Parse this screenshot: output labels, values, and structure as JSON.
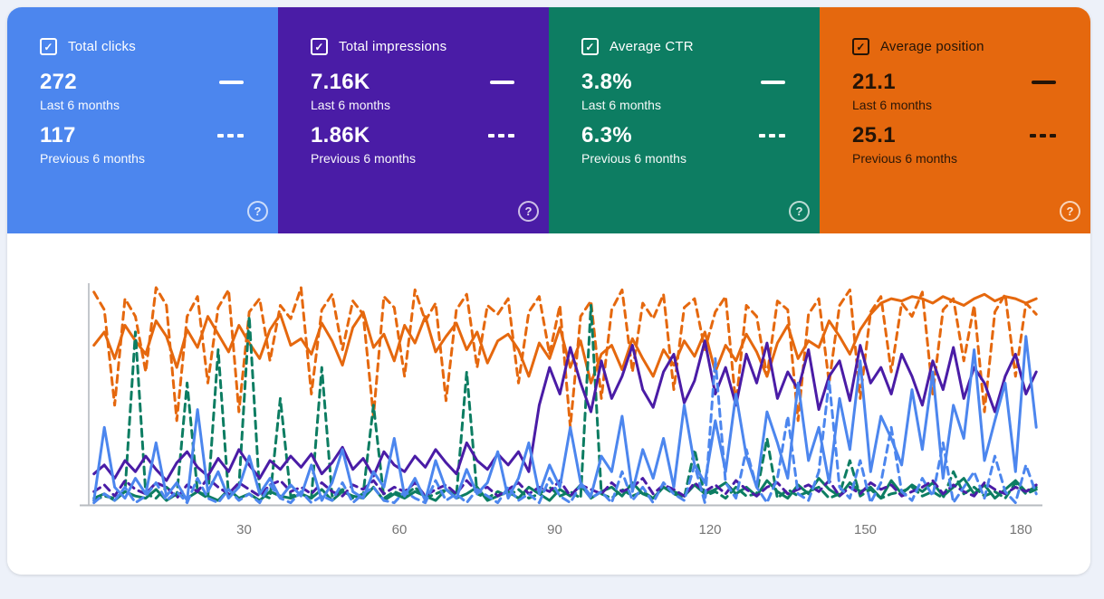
{
  "cards": [
    {
      "label": "Total clicks",
      "value_last": "272",
      "value_prev": "117",
      "bg": "#4c86ee",
      "text": "#ffffff",
      "checked": true
    },
    {
      "label": "Total impressions",
      "value_last": "7.16K",
      "value_prev": "1.86K",
      "bg": "#4a1ca6",
      "text": "#ffffff",
      "checked": true
    },
    {
      "label": "Average CTR",
      "value_last": "3.8%",
      "value_prev": "6.3%",
      "bg": "#0d7d62",
      "text": "#ffffff",
      "checked": true
    },
    {
      "label": "Average position",
      "value_last": "21.1",
      "value_prev": "25.1",
      "bg": "#e5680e",
      "text": "#241407",
      "checked": true
    }
  ],
  "period_labels": {
    "last": "Last 6 months",
    "prev": "Previous 6 months"
  },
  "icons": {
    "help": "?",
    "check": "✓"
  },
  "colors": {
    "clicks": "#4c86ee",
    "impressions": "#4a1ca6",
    "ctr": "#0d7d62",
    "position": "#e5680e",
    "axis": "#c4c7cc",
    "tick_text": "#757575"
  },
  "chart_data": {
    "type": "line",
    "title": "",
    "xlabel": "",
    "ylabel": "",
    "x_ticks": [
      30,
      60,
      90,
      120,
      150,
      180
    ],
    "x_range": [
      1,
      183
    ],
    "x_step_days": 2,
    "ylim": [
      0,
      100
    ],
    "grid": false,
    "legend_position": "in-cards",
    "series": [
      {
        "name": "Average position — Previous 6 months",
        "metric": "position",
        "period": "previous",
        "color": "#e5680e",
        "dash": true,
        "values": [
          96,
          88,
          45,
          93,
          85,
          60,
          98,
          90,
          38,
          85,
          94,
          55,
          89,
          97,
          42,
          87,
          93,
          65,
          90,
          84,
          98,
          50,
          88,
          95,
          70,
          92,
          86,
          40,
          94,
          89,
          58,
          97,
          83,
          91,
          47,
          88,
          95,
          62,
          90,
          86,
          93,
          55,
          87,
          94,
          68,
          90,
          35,
          85,
          92,
          48,
          88,
          97,
          60,
          91,
          84,
          95,
          52,
          89,
          93,
          70,
          87,
          94,
          45,
          90,
          85,
          58,
          92,
          88,
          38,
          86,
          93,
          55,
          90,
          97,
          48,
          87,
          94,
          60,
          91,
          85,
          96,
          50,
          88,
          93,
          65,
          90,
          42,
          87,
          95,
          58,
          91,
          86
        ]
      },
      {
        "name": "Average position — Last 6 months",
        "metric": "position",
        "period": "last",
        "color": "#e5680e",
        "dash": false,
        "values": [
          72,
          78,
          66,
          81,
          74,
          68,
          83,
          76,
          62,
          79,
          71,
          85,
          77,
          69,
          81,
          73,
          66,
          79,
          86,
          72,
          75,
          68,
          82,
          74,
          63,
          80,
          87,
          71,
          77,
          65,
          81,
          73,
          85,
          69,
          76,
          82,
          70,
          78,
          64,
          74,
          77,
          70,
          58,
          73,
          66,
          80,
          62,
          74,
          55,
          68,
          72,
          61,
          75,
          66,
          58,
          70,
          63,
          74,
          67,
          78,
          60,
          72,
          65,
          77,
          69,
          58,
          73,
          81,
          66,
          74,
          71,
          83,
          76,
          68,
          79,
          86,
          91,
          93,
          92,
          94,
          93,
          91,
          94,
          92,
          90,
          93,
          95,
          92,
          94,
          93,
          91,
          93
        ]
      },
      {
        "name": "Average CTR — Previous 6 months",
        "metric": "ctr",
        "period": "previous",
        "color": "#0d7d62",
        "dash": true,
        "values": [
          2,
          4,
          3,
          6,
          78,
          5,
          3,
          8,
          4,
          55,
          6,
          3,
          70,
          4,
          8,
          85,
          5,
          3,
          48,
          4,
          5,
          3,
          62,
          4,
          7,
          3,
          5,
          45,
          3,
          6,
          4,
          8,
          3,
          5,
          7,
          4,
          60,
          5,
          3,
          6,
          4,
          7,
          3,
          5,
          8,
          4,
          6,
          3,
          90,
          5,
          3,
          7,
          4,
          6,
          3,
          8,
          5,
          3,
          25,
          4,
          6,
          3,
          8,
          4,
          5,
          30,
          3,
          7,
          4,
          6,
          8,
          3,
          5,
          20,
          4,
          7,
          3,
          5,
          6,
          8,
          4,
          6,
          3,
          15,
          5,
          8,
          4,
          6,
          3,
          10,
          5,
          7
        ]
      },
      {
        "name": "Average CTR — Last 6 months",
        "metric": "ctr",
        "period": "last",
        "color": "#0d7d62",
        "dash": false,
        "values": [
          3,
          5,
          2,
          6,
          4,
          3,
          7,
          2,
          5,
          3,
          6,
          4,
          2,
          7,
          3,
          5,
          2,
          6,
          4,
          3,
          5,
          3,
          7,
          2,
          6,
          4,
          3,
          8,
          2,
          5,
          3,
          6,
          4,
          2,
          7,
          3,
          5,
          8,
          2,
          4,
          6,
          3,
          8,
          5,
          2,
          7,
          4,
          9,
          3,
          6,
          8,
          4,
          10,
          5,
          3,
          8,
          6,
          4,
          9,
          5,
          7,
          10,
          5,
          8,
          4,
          11,
          6,
          3,
          9,
          5,
          12,
          7,
          4,
          10,
          6,
          8,
          3,
          11,
          5,
          9,
          6,
          10,
          4,
          8,
          12,
          5,
          9,
          3,
          7,
          11,
          6,
          8
        ]
      },
      {
        "name": "Total impressions — Previous 6 months",
        "metric": "impressions",
        "period": "previous",
        "color": "#4a1ca6",
        "dash": true,
        "values": [
          6,
          9,
          4,
          11,
          7,
          5,
          10,
          8,
          3,
          9,
          6,
          12,
          8,
          5,
          10,
          7,
          4,
          9,
          11,
          6,
          8,
          5,
          10,
          6,
          4,
          9,
          7,
          11,
          5,
          8,
          6,
          10,
          4,
          7,
          9,
          5,
          11,
          6,
          8,
          4,
          7,
          10,
          5,
          8,
          6,
          11,
          4,
          9,
          7,
          5,
          10,
          6,
          8,
          12,
          5,
          9,
          7,
          4,
          10,
          6,
          9,
          5,
          11,
          7,
          4,
          8,
          10,
          5,
          7,
          9,
          6,
          11,
          4,
          8,
          5,
          10,
          7,
          9,
          4,
          6,
          8,
          11,
          5,
          9,
          6,
          4,
          10,
          7,
          5,
          8,
          6,
          9
        ]
      },
      {
        "name": "Total impressions — Last 6 months",
        "metric": "impressions",
        "period": "last",
        "color": "#4a1ca6",
        "dash": false,
        "values": [
          14,
          18,
          12,
          20,
          15,
          22,
          16,
          11,
          19,
          24,
          17,
          13,
          21,
          15,
          25,
          18,
          12,
          20,
          16,
          22,
          17,
          23,
          14,
          19,
          26,
          16,
          21,
          13,
          24,
          18,
          15,
          22,
          17,
          25,
          19,
          14,
          28,
          20,
          16,
          23,
          18,
          24,
          15,
          45,
          62,
          50,
          71,
          55,
          42,
          65,
          48,
          58,
          72,
          52,
          44,
          60,
          68,
          46,
          56,
          74,
          50,
          62,
          45,
          68,
          55,
          73,
          48,
          60,
          52,
          70,
          43,
          58,
          65,
          47,
          72,
          55,
          62,
          50,
          68,
          58,
          45,
          65,
          52,
          71,
          48,
          62,
          55,
          42,
          58,
          68,
          50,
          60
        ]
      },
      {
        "name": "Total clicks — Previous 6 months",
        "metric": "clicks",
        "period": "previous",
        "color": "#4c86ee",
        "dash": true,
        "values": [
          1,
          5,
          2,
          8,
          1,
          4,
          10,
          2,
          6,
          1,
          12,
          3,
          1,
          7,
          2,
          5,
          1,
          9,
          3,
          1,
          6,
          1,
          4,
          2,
          10,
          1,
          5,
          8,
          2,
          1,
          6,
          3,
          1,
          11,
          2,
          5,
          1,
          7,
          4,
          1,
          8,
          2,
          5,
          1,
          12,
          4,
          1,
          9,
          3,
          6,
          1,
          15,
          2,
          8,
          1,
          10,
          5,
          2,
          18,
          1,
          66,
          10,
          3,
          25,
          8,
          1,
          12,
          40,
          5,
          2,
          15,
          56,
          8,
          3,
          20,
          1,
          10,
          35,
          6,
          2,
          12,
          4,
          28,
          1,
          8,
          15,
          3,
          22,
          6,
          1,
          18,
          5
        ]
      },
      {
        "name": "Total clicks — Last 6 months",
        "metric": "clicks",
        "period": "last",
        "color": "#4c86ee",
        "dash": false,
        "values": [
          2,
          35,
          8,
          3,
          12,
          5,
          28,
          4,
          10,
          2,
          43,
          6,
          15,
          3,
          8,
          22,
          5,
          12,
          3,
          9,
          4,
          18,
          2,
          10,
          25,
          6,
          3,
          15,
          8,
          30,
          4,
          12,
          2,
          20,
          7,
          3,
          16,
          5,
          10,
          24,
          3,
          12,
          28,
          5,
          18,
          8,
          35,
          10,
          4,
          22,
          15,
          40,
          6,
          25,
          12,
          30,
          8,
          45,
          18,
          10,
          38,
          15,
          50,
          22,
          8,
          42,
          28,
          12,
          55,
          20,
          35,
          10,
          48,
          25,
          65,
          15,
          40,
          30,
          18,
          52,
          25,
          60,
          12,
          45,
          30,
          70,
          20,
          38,
          55,
          15,
          76,
          35
        ]
      }
    ]
  }
}
